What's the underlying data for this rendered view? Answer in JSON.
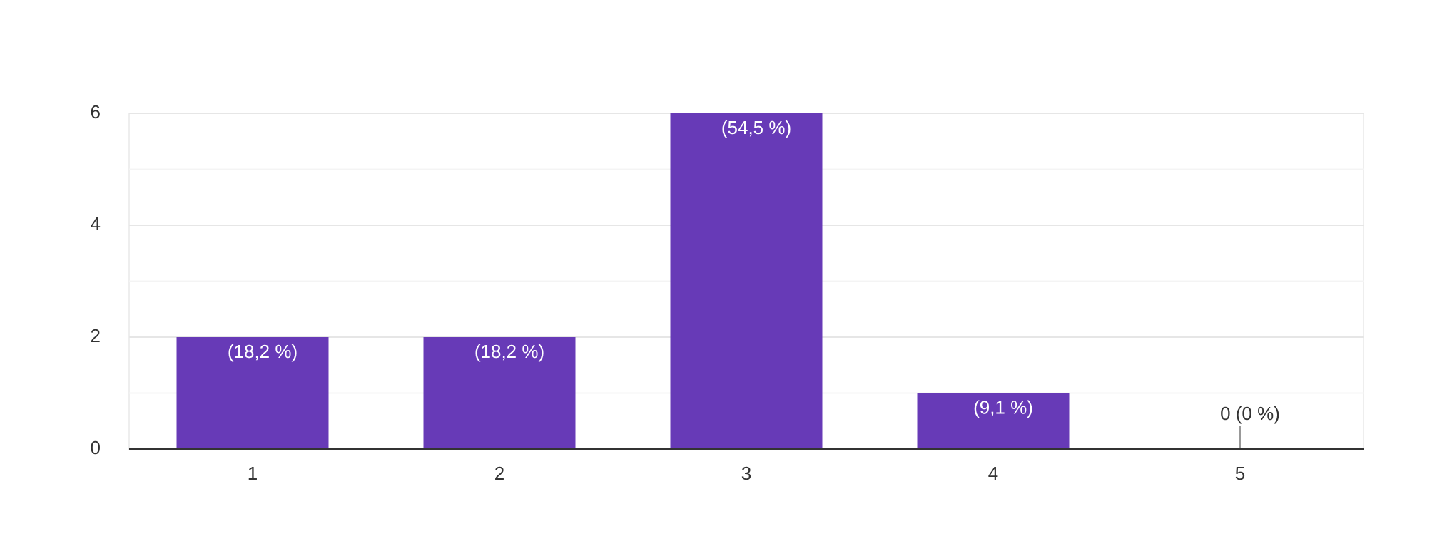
{
  "chart_data": {
    "type": "bar",
    "categories": [
      "1",
      "2",
      "3",
      "4",
      "5"
    ],
    "values": [
      2,
      2,
      6,
      1,
      0
    ],
    "value_labels": [
      "(18,2 %)",
      "(18,2 %)",
      "(54,5 %)",
      "(9,1 %)",
      "0 (0 %)"
    ],
    "color": "#673ab7",
    "ylim": [
      0,
      6
    ],
    "yticks": [
      0,
      2,
      4,
      6
    ],
    "minor_yticks": [
      1,
      3,
      5
    ],
    "grid": true
  }
}
